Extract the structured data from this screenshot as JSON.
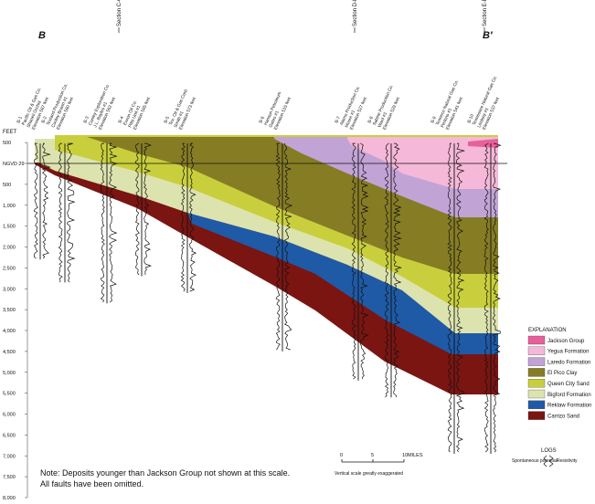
{
  "section_ends": {
    "left": "B",
    "right": "B′"
  },
  "section_refs": [
    {
      "label": "Section C-C′",
      "side": "left"
    },
    {
      "label": "Section D-D′",
      "side": "middle"
    },
    {
      "label": "Section E-E′",
      "side": "right"
    }
  ],
  "axis": {
    "unit_label": "FEET",
    "datum_label": "NGVD 29",
    "ticks": [
      {
        "label": "500",
        "value": 500
      },
      {
        "label": "NGVD 29",
        "value": 0
      },
      {
        "label": "500",
        "value": -500
      },
      {
        "label": "1,000",
        "value": -1000
      },
      {
        "label": "1,500",
        "value": -1500
      },
      {
        "label": "2,000",
        "value": -2000
      },
      {
        "label": "2,500",
        "value": -2500
      },
      {
        "label": "3,000",
        "value": -3000
      },
      {
        "label": "3,500",
        "value": -3500
      },
      {
        "label": "4,000",
        "value": -4000
      },
      {
        "label": "4,500",
        "value": -4500
      },
      {
        "label": "5,000",
        "value": -5000
      },
      {
        "label": "5,500",
        "value": -5500
      },
      {
        "label": "6,000",
        "value": -6000
      },
      {
        "label": "6,500",
        "value": -6500
      },
      {
        "label": "7,000",
        "value": -7000
      },
      {
        "label": "7,500",
        "value": -7500
      },
      {
        "label": "8,000",
        "value": -8000
      }
    ]
  },
  "wells": [
    {
      "id": "B-1",
      "operator": "Pacific Oil & Gas Co.",
      "well": "Shaneil Orchid",
      "elevation": "Elevation 587 feet",
      "td_ft": 2300
    },
    {
      "id": "B-2",
      "operator": "Texland Production Co.",
      "well": "Conley Brown #1",
      "elevation": "Elevation 580 feet",
      "td_ft": 2850
    },
    {
      "id": "B-3",
      "operator": "Conley Exploration Co.",
      "well": "J.L. Boyles #1",
      "elevation": "Elevation 562 feet",
      "td_ft": 3350
    },
    {
      "id": "B-4",
      "operator": "Exxon Oil Co.",
      "well": "Pitts Unit #1",
      "elevation": "Elevation 595 feet",
      "td_ft": 2700
    },
    {
      "id": "B-5",
      "operator": "Tex. Oil & Gas Corp.",
      "well": "Smith #1",
      "elevation": "Elevation 573 feet",
      "td_ft": 3100
    },
    {
      "id": "B-6",
      "operator": "Hanson Petroleum",
      "well": "Gates #1",
      "elevation": "Elevation 515 feet",
      "td_ft": 4500
    },
    {
      "id": "B-7",
      "operator": "Alamo Production Co.",
      "well": "Moore #1",
      "elevation": "Elevation 527 feet",
      "td_ft": 5200
    },
    {
      "id": "B-8",
      "operator": "Sabine Production Co.",
      "well": "Ward #1",
      "elevation": "Elevation 529 feet",
      "td_ft": 5600
    },
    {
      "id": "B-9",
      "operator": "Tenneco Natural Gas Co.",
      "well": "Perkins #1",
      "elevation": "Elevation 541 feet",
      "td_ft": 6950
    },
    {
      "id": "B-10",
      "operator": "Tennessee Natural Gas Co.",
      "well": "Lindsey #1",
      "elevation": "Elevation 537 feet",
      "td_ft": 6950
    }
  ],
  "units": [
    {
      "key": "jackson",
      "name": "Jackson Group",
      "color": "#e8609b"
    },
    {
      "key": "yegua",
      "name": "Yegua Formation",
      "color": "#f5b8d8"
    },
    {
      "key": "laredo",
      "name": "Laredo Formation",
      "color": "#c2a3d6"
    },
    {
      "key": "elpico",
      "name": "El Pico Clay",
      "color": "#867c24"
    },
    {
      "key": "queencity",
      "name": "Queen City Sand",
      "color": "#c9cf3c"
    },
    {
      "key": "bigford",
      "name": "Bigford Formation",
      "color": "#dde3ae"
    },
    {
      "key": "reklaw",
      "name": "Reklaw Formation",
      "color": "#1f5aa6"
    },
    {
      "key": "carrizo",
      "name": "Carrizo Sand",
      "color": "#7a1512"
    }
  ],
  "explanation": {
    "title": "EXPLANATION"
  },
  "scale_bar": {
    "ticks": [
      "0",
      "5",
      "10"
    ],
    "unit": "MILES",
    "caption": "Vertical scale greatly exaggerated"
  },
  "logs": {
    "title": "LOGS",
    "left_label": "Spontaneous potential",
    "right_label": "Resistivity"
  },
  "note": {
    "line1": "Note: Deposits younger than Jackson Group not shown at this scale.",
    "line2": "All faults have been omitted."
  }
}
